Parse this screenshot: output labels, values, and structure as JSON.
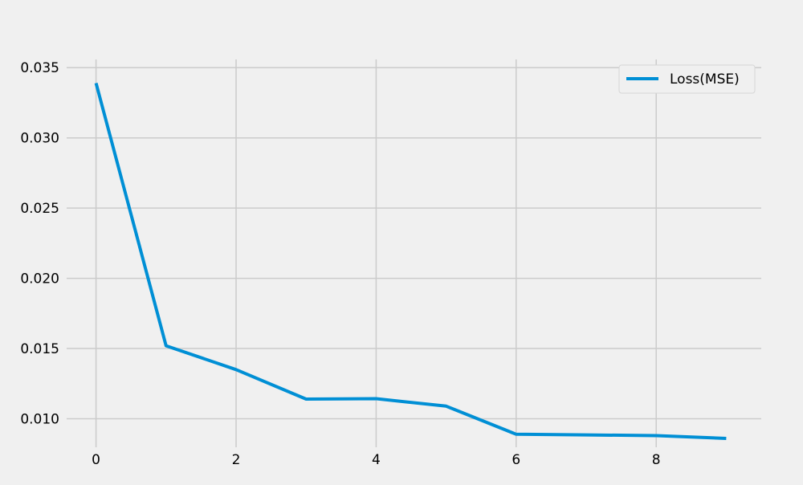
{
  "chart_data": {
    "type": "line",
    "title": "",
    "xlabel": "",
    "ylabel": "",
    "x": [
      0,
      1,
      2,
      3,
      4,
      5,
      6,
      7,
      8,
      9
    ],
    "series": [
      {
        "name": "Loss(MSE)",
        "color": "#008fd5",
        "values": [
          0.0339,
          0.0152,
          0.0135,
          0.0114,
          0.01143,
          0.0109,
          0.0089,
          0.00885,
          0.0088,
          0.0086
        ]
      }
    ],
    "xlim": [
      -0.5,
      9.5
    ],
    "ylim": [
      0.0078,
      0.0373
    ],
    "x_ticks": [
      0,
      2,
      4,
      6,
      8
    ],
    "x_tick_labels": [
      "0",
      "2",
      "4",
      "6",
      "8"
    ],
    "y_ticks": [
      0.01,
      0.015,
      0.02,
      0.025,
      0.03,
      0.035
    ],
    "y_tick_labels": [
      "0.010",
      "0.015",
      "0.020",
      "0.025",
      "0.030",
      "0.035"
    ],
    "grid": true,
    "legend_position": "top-right",
    "colors": {
      "background": "#f0f0f0",
      "grid": "#cbcbcb"
    }
  }
}
